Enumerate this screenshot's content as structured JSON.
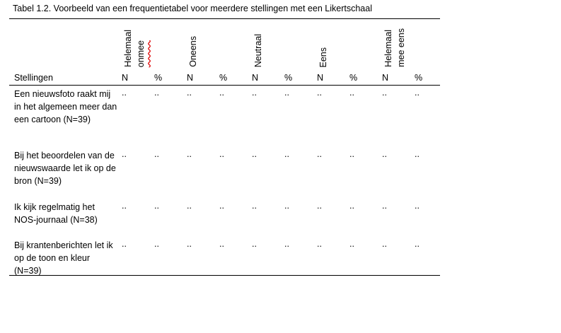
{
  "header": {
    "title": "Tabel 1.2. Voorbeeld van een frequentietabel voor meerdere stellingen met een Likertschaal"
  },
  "table": {
    "groups": [
      [
        "Helemaal",
        "onmee"
      ],
      [
        "Oneens"
      ],
      [
        "Neutraal"
      ],
      [
        "Eens"
      ],
      [
        "Helemaal",
        "mee eens"
      ]
    ],
    "columns": [
      "Stellingen",
      "N",
      "%",
      "N",
      "%",
      "N",
      "%",
      "N",
      "%",
      "N",
      "%"
    ],
    "rows": [
      [
        "Een nieuwsfoto raakt mij in het algemeen meer dan een cartoon (N=39)",
        "..",
        "..",
        "..",
        "..",
        "..",
        "..",
        "..",
        "..",
        "..",
        ".."
      ],
      [
        "Bij het beoordelen van de nieuwswaarde let ik op de bron (N=39)",
        "..",
        "..",
        "..",
        "..",
        "..",
        "..",
        "..",
        "..",
        "..",
        ".."
      ],
      [
        "Ik kijk regelmatig het NOS-journaal (N=38)",
        "..",
        "..",
        "..",
        "..",
        "..",
        "..",
        "..",
        "..",
        "..",
        ".."
      ],
      [
        "Bij krantenberichten let ik op de toon en kleur (N=39)",
        "..",
        "..",
        "..",
        "..",
        "..",
        "..",
        "..",
        "..",
        "..",
        ".."
      ]
    ]
  }
}
